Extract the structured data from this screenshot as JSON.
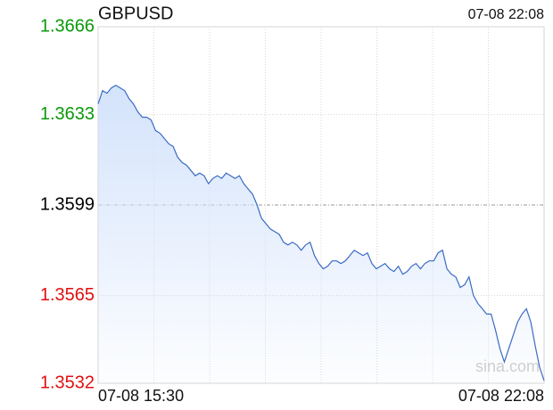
{
  "chart_data": {
    "type": "line",
    "title": "GBPUSD",
    "timestamp": "07-08 22:08",
    "x_start_label": "07-08 15:30",
    "x_end_label": "07-08 22:08",
    "watermark": "sina.com",
    "color": "#3a6bc4",
    "fill_color": "#cfe0fb",
    "ylim": [
      1.3532,
      1.3666
    ],
    "yticks": [
      1.3666,
      1.3633,
      1.3599,
      1.3565,
      1.3532
    ],
    "ytick_colors": [
      "#0a9a0a",
      "#0a9a0a",
      "#000000",
      "#e01010",
      "#e01010"
    ],
    "grid": true,
    "values": [
      1.3637,
      1.3642,
      1.3641,
      1.3643,
      1.3644,
      1.3643,
      1.3642,
      1.3639,
      1.3637,
      1.3634,
      1.3632,
      1.3632,
      1.3631,
      1.3627,
      1.3626,
      1.3624,
      1.3622,
      1.3621,
      1.3617,
      1.3615,
      1.3614,
      1.3612,
      1.361,
      1.3611,
      1.361,
      1.3607,
      1.3609,
      1.361,
      1.3609,
      1.3611,
      1.361,
      1.3609,
      1.361,
      1.3607,
      1.3605,
      1.3603,
      1.3599,
      1.3594,
      1.3592,
      1.359,
      1.3589,
      1.3588,
      1.3585,
      1.3584,
      1.3585,
      1.3584,
      1.3582,
      1.3584,
      1.3585,
      1.358,
      1.3577,
      1.3575,
      1.3576,
      1.3578,
      1.3578,
      1.3577,
      1.3578,
      1.358,
      1.3582,
      1.3581,
      1.358,
      1.3581,
      1.3577,
      1.3575,
      1.3576,
      1.3577,
      1.3575,
      1.3574,
      1.3576,
      1.3573,
      1.3574,
      1.3576,
      1.3577,
      1.3575,
      1.3577,
      1.3578,
      1.3578,
      1.3581,
      1.3582,
      1.3575,
      1.3573,
      1.3572,
      1.3568,
      1.3569,
      1.3572,
      1.3565,
      1.3562,
      1.356,
      1.3558,
      1.3558,
      1.3552,
      1.3545,
      1.354,
      1.3545,
      1.355,
      1.3555,
      1.3558,
      1.356,
      1.3555,
      1.3546,
      1.3538,
      1.3533
    ]
  }
}
